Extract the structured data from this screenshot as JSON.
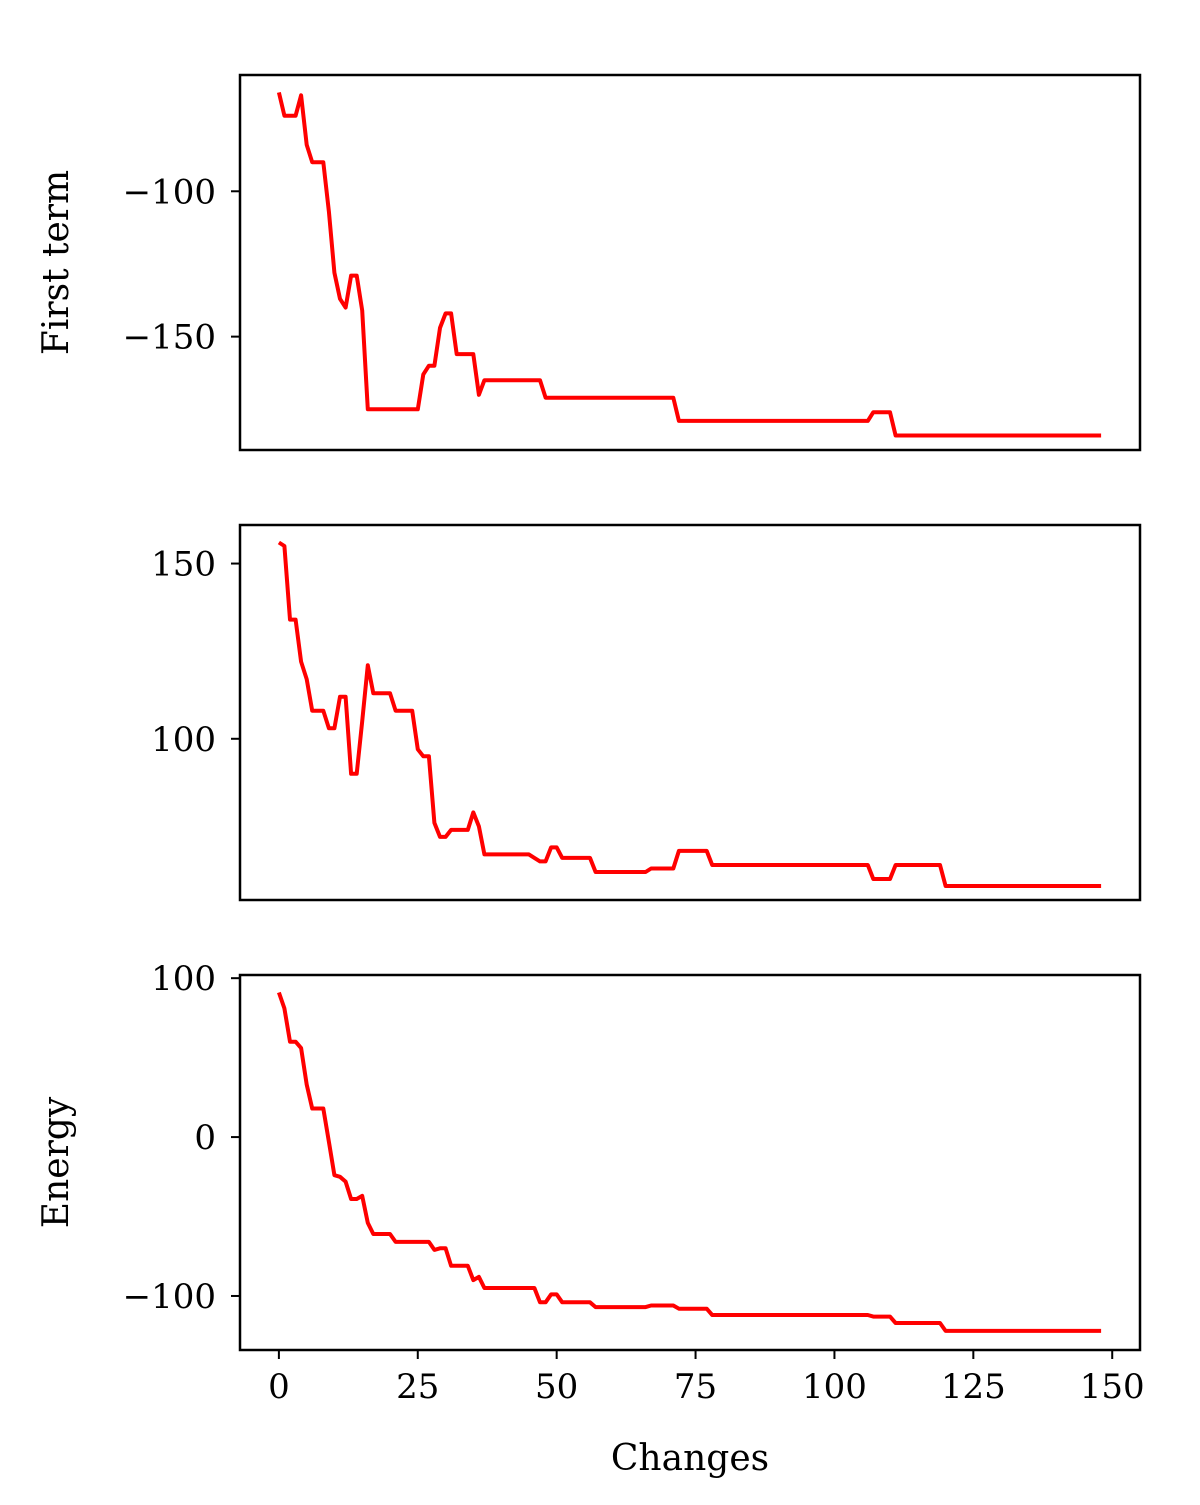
{
  "chart_data": [
    {
      "type": "line",
      "ylabel": "First term",
      "xlabel": "",
      "yticks": [
        -100,
        -150
      ],
      "ylim": [
        -189,
        -60
      ],
      "xlim": [
        -7,
        155
      ],
      "show_xticks": false,
      "grid": false,
      "color": "#ff0000",
      "points": [
        [
          0,
          -66
        ],
        [
          1,
          -74
        ],
        [
          2,
          -74
        ],
        [
          3,
          -74
        ],
        [
          4,
          -67
        ],
        [
          5,
          -84
        ],
        [
          6,
          -90
        ],
        [
          7,
          -90
        ],
        [
          8,
          -90
        ],
        [
          9,
          -107
        ],
        [
          10,
          -128
        ],
        [
          11,
          -137
        ],
        [
          12,
          -140
        ],
        [
          13,
          -129
        ],
        [
          14,
          -129
        ],
        [
          15,
          -141
        ],
        [
          16,
          -175
        ],
        [
          17,
          -175
        ],
        [
          18,
          -175
        ],
        [
          20,
          -175
        ],
        [
          22,
          -175
        ],
        [
          24,
          -175
        ],
        [
          25,
          -175
        ],
        [
          26,
          -163
        ],
        [
          27,
          -160
        ],
        [
          28,
          -160
        ],
        [
          29,
          -147
        ],
        [
          30,
          -142
        ],
        [
          31,
          -142
        ],
        [
          32,
          -156
        ],
        [
          33,
          -156
        ],
        [
          34,
          -156
        ],
        [
          35,
          -156
        ],
        [
          36,
          -170
        ],
        [
          37,
          -165
        ],
        [
          38,
          -165
        ],
        [
          40,
          -165
        ],
        [
          45,
          -165
        ],
        [
          47,
          -165
        ],
        [
          48,
          -171
        ],
        [
          50,
          -171
        ],
        [
          55,
          -171
        ],
        [
          60,
          -171
        ],
        [
          65,
          -171
        ],
        [
          71,
          -171
        ],
        [
          72,
          -179
        ],
        [
          75,
          -179
        ],
        [
          80,
          -179
        ],
        [
          90,
          -179
        ],
        [
          100,
          -179
        ],
        [
          106,
          -179
        ],
        [
          107,
          -176
        ],
        [
          108,
          -176
        ],
        [
          109,
          -176
        ],
        [
          110,
          -176
        ],
        [
          111,
          -184
        ],
        [
          115,
          -184
        ],
        [
          120,
          -184
        ],
        [
          130,
          -184
        ],
        [
          140,
          -184
        ],
        [
          148,
          -184
        ]
      ]
    },
    {
      "type": "line",
      "ylabel": "",
      "xlabel": "",
      "yticks": [
        150,
        100
      ],
      "ylim": [
        54,
        161
      ],
      "xlim": [
        -7,
        155
      ],
      "show_xticks": false,
      "grid": false,
      "color": "#ff0000",
      "points": [
        [
          0,
          156
        ],
        [
          1,
          155
        ],
        [
          2,
          134
        ],
        [
          3,
          134
        ],
        [
          4,
          122
        ],
        [
          5,
          117
        ],
        [
          6,
          108
        ],
        [
          7,
          108
        ],
        [
          8,
          108
        ],
        [
          9,
          103
        ],
        [
          10,
          103
        ],
        [
          11,
          112
        ],
        [
          12,
          112
        ],
        [
          13,
          90
        ],
        [
          14,
          90
        ],
        [
          15,
          105
        ],
        [
          16,
          121
        ],
        [
          17,
          113
        ],
        [
          18,
          113
        ],
        [
          19,
          113
        ],
        [
          20,
          113
        ],
        [
          21,
          108
        ],
        [
          22,
          108
        ],
        [
          23,
          108
        ],
        [
          24,
          108
        ],
        [
          25,
          97
        ],
        [
          26,
          95
        ],
        [
          27,
          95
        ],
        [
          28,
          76
        ],
        [
          29,
          72
        ],
        [
          30,
          72
        ],
        [
          31,
          74
        ],
        [
          32,
          74
        ],
        [
          33,
          74
        ],
        [
          34,
          74
        ],
        [
          35,
          79
        ],
        [
          36,
          75
        ],
        [
          37,
          67
        ],
        [
          38,
          67
        ],
        [
          40,
          67
        ],
        [
          45,
          67
        ],
        [
          46,
          66
        ],
        [
          47,
          65
        ],
        [
          48,
          65
        ],
        [
          49,
          69
        ],
        [
          50,
          69
        ],
        [
          51,
          66
        ],
        [
          52,
          66
        ],
        [
          55,
          66
        ],
        [
          56,
          66
        ],
        [
          57,
          62
        ],
        [
          58,
          62
        ],
        [
          60,
          62
        ],
        [
          66,
          62
        ],
        [
          67,
          63
        ],
        [
          70,
          63
        ],
        [
          71,
          63
        ],
        [
          72,
          68
        ],
        [
          75,
          68
        ],
        [
          77,
          68
        ],
        [
          78,
          64
        ],
        [
          80,
          64
        ],
        [
          90,
          64
        ],
        [
          100,
          64
        ],
        [
          106,
          64
        ],
        [
          107,
          60
        ],
        [
          108,
          60
        ],
        [
          109,
          60
        ],
        [
          110,
          60
        ],
        [
          111,
          64
        ],
        [
          115,
          64
        ],
        [
          119,
          64
        ],
        [
          120,
          58
        ],
        [
          125,
          58
        ],
        [
          130,
          58
        ],
        [
          140,
          58
        ],
        [
          148,
          58
        ]
      ]
    },
    {
      "type": "line",
      "ylabel": "Energy",
      "xlabel": "Changes",
      "yticks": [
        100,
        0,
        -100
      ],
      "xticks": [
        0,
        25,
        50,
        75,
        100,
        125,
        150
      ],
      "ylim": [
        -134,
        102
      ],
      "xlim": [
        -7,
        155
      ],
      "show_xticks": true,
      "grid": false,
      "color": "#ff0000",
      "points": [
        [
          0,
          91
        ],
        [
          1,
          81
        ],
        [
          2,
          60
        ],
        [
          3,
          60
        ],
        [
          4,
          56
        ],
        [
          5,
          33
        ],
        [
          6,
          18
        ],
        [
          7,
          18
        ],
        [
          8,
          18
        ],
        [
          9,
          -3
        ],
        [
          10,
          -24
        ],
        [
          11,
          -25
        ],
        [
          12,
          -28
        ],
        [
          13,
          -39
        ],
        [
          14,
          -39
        ],
        [
          15,
          -37
        ],
        [
          16,
          -54
        ],
        [
          17,
          -61
        ],
        [
          18,
          -61
        ],
        [
          20,
          -61
        ],
        [
          21,
          -66
        ],
        [
          22,
          -66
        ],
        [
          25,
          -66
        ],
        [
          26,
          -66
        ],
        [
          27,
          -66
        ],
        [
          28,
          -71
        ],
        [
          29,
          -70
        ],
        [
          30,
          -70
        ],
        [
          31,
          -81
        ],
        [
          32,
          -81
        ],
        [
          33,
          -81
        ],
        [
          34,
          -81
        ],
        [
          35,
          -90
        ],
        [
          36,
          -88
        ],
        [
          37,
          -95
        ],
        [
          38,
          -95
        ],
        [
          40,
          -95
        ],
        [
          45,
          -95
        ],
        [
          46,
          -95
        ],
        [
          47,
          -104
        ],
        [
          48,
          -104
        ],
        [
          49,
          -99
        ],
        [
          50,
          -99
        ],
        [
          51,
          -104
        ],
        [
          52,
          -104
        ],
        [
          55,
          -104
        ],
        [
          56,
          -104
        ],
        [
          57,
          -107
        ],
        [
          58,
          -107
        ],
        [
          60,
          -107
        ],
        [
          66,
          -107
        ],
        [
          67,
          -106
        ],
        [
          70,
          -106
        ],
        [
          71,
          -106
        ],
        [
          72,
          -108
        ],
        [
          75,
          -108
        ],
        [
          77,
          -108
        ],
        [
          78,
          -112
        ],
        [
          80,
          -112
        ],
        [
          90,
          -112
        ],
        [
          100,
          -112
        ],
        [
          106,
          -112
        ],
        [
          107,
          -113
        ],
        [
          108,
          -113
        ],
        [
          109,
          -113
        ],
        [
          110,
          -113
        ],
        [
          111,
          -117
        ],
        [
          115,
          -117
        ],
        [
          119,
          -117
        ],
        [
          120,
          -122
        ],
        [
          125,
          -122
        ],
        [
          130,
          -122
        ],
        [
          140,
          -122
        ],
        [
          148,
          -122
        ]
      ]
    }
  ]
}
